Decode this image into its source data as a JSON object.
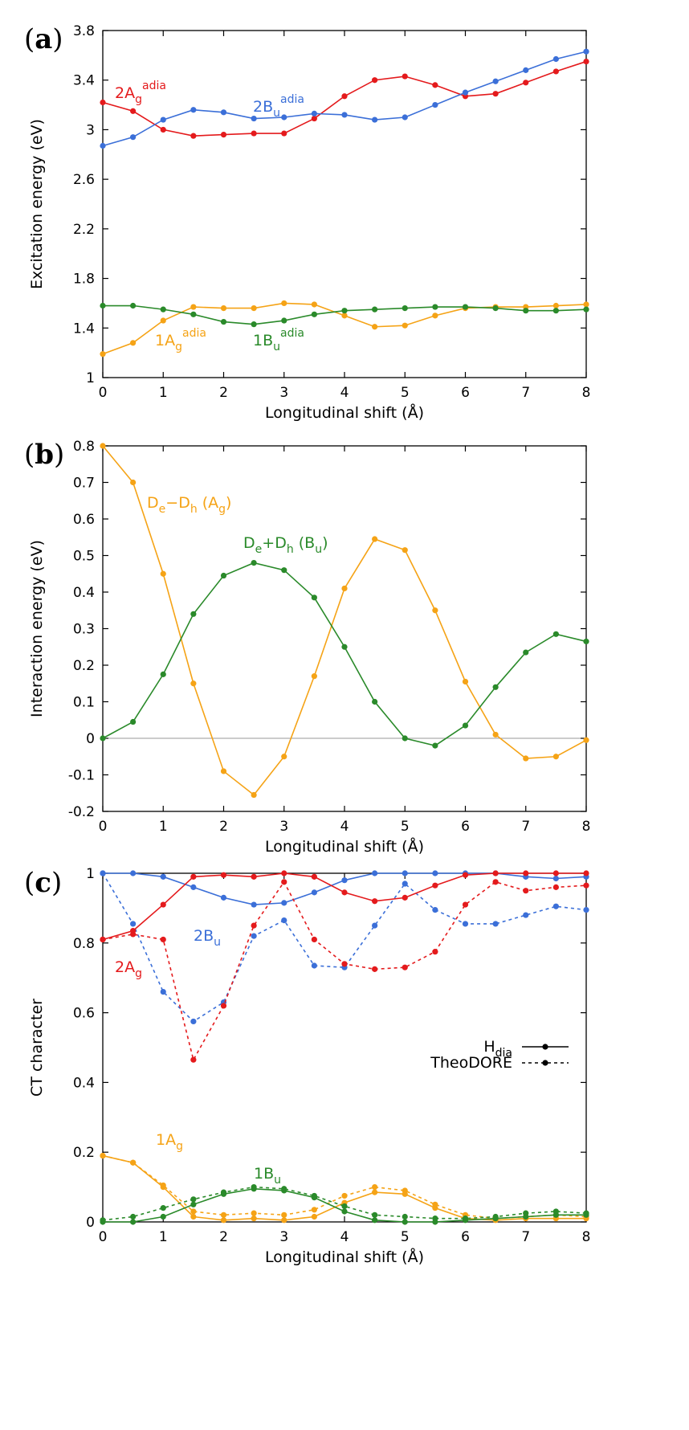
{
  "colors": {
    "red": "#e41a1c",
    "blue": "#3b6fd8",
    "green": "#2a8a2a",
    "orange": "#f5a316",
    "axis": "#000000",
    "zero_line": "#999999"
  },
  "chart_data": [
    {
      "panel": "(a)",
      "type": "line",
      "xlabel": "Longitudinal shift (Å)",
      "ylabel": "Excitation energy (eV)",
      "xlim": [
        0,
        8
      ],
      "ylim": [
        1,
        3.8
      ],
      "xticks": [
        "0",
        "1",
        "2",
        "3",
        "4",
        "5",
        "6",
        "7",
        "8"
      ],
      "yticks": [
        "1",
        "1.4",
        "1.8",
        "2.2",
        "2.6",
        "3",
        "3.4",
        "3.8"
      ],
      "x": [
        0,
        0.5,
        1,
        1.5,
        2,
        2.5,
        3,
        3.5,
        4,
        4.5,
        5,
        5.5,
        6,
        6.5,
        7,
        7.5,
        8
      ],
      "series": [
        {
          "name": "2Ag",
          "sup": "adia",
          "color": "red",
          "values": [
            3.22,
            3.15,
            3.0,
            2.95,
            2.96,
            2.97,
            2.97,
            3.09,
            3.27,
            3.4,
            3.43,
            3.36,
            3.27,
            3.29,
            3.38,
            3.47,
            3.55
          ]
        },
        {
          "name": "2Bu",
          "sup": "adia",
          "color": "blue",
          "values": [
            2.87,
            2.94,
            3.08,
            3.16,
            3.14,
            3.09,
            3.1,
            3.13,
            3.12,
            3.08,
            3.1,
            3.2,
            3.3,
            3.39,
            3.48,
            3.57,
            3.63
          ]
        },
        {
          "name": "1Ag",
          "sup": "adia",
          "color": "orange",
          "values": [
            1.19,
            1.28,
            1.46,
            1.57,
            1.56,
            1.56,
            1.6,
            1.59,
            1.5,
            1.41,
            1.42,
            1.5,
            1.56,
            1.57,
            1.57,
            1.58,
            1.59
          ]
        },
        {
          "name": "1Bu",
          "sup": "adia",
          "color": "green",
          "values": [
            1.58,
            1.58,
            1.55,
            1.51,
            1.45,
            1.43,
            1.46,
            1.51,
            1.54,
            1.55,
            1.56,
            1.57,
            1.57,
            1.56,
            1.54,
            1.54,
            1.55
          ]
        }
      ]
    },
    {
      "panel": "(b)",
      "type": "line",
      "xlabel": "Longitudinal shift (Å)",
      "ylabel": "Interaction energy (eV)",
      "xlim": [
        0,
        8
      ],
      "ylim": [
        -0.2,
        0.8
      ],
      "xticks": [
        "0",
        "1",
        "2",
        "3",
        "4",
        "5",
        "6",
        "7",
        "8"
      ],
      "yticks": [
        "-0.2",
        "-0.1",
        "0",
        "0.1",
        "0.2",
        "0.3",
        "0.4",
        "0.5",
        "0.6",
        "0.7",
        "0.8"
      ],
      "x": [
        0,
        0.5,
        1,
        1.5,
        2,
        2.5,
        3,
        3.5,
        4,
        4.5,
        5,
        5.5,
        6,
        6.5,
        7,
        7.5,
        8
      ],
      "series": [
        {
          "name": "De−Dh (Ag)",
          "color": "orange",
          "values": [
            0.8,
            0.7,
            0.45,
            0.15,
            -0.09,
            -0.155,
            -0.05,
            0.17,
            0.41,
            0.545,
            0.515,
            0.35,
            0.155,
            0.01,
            -0.055,
            -0.05,
            -0.005
          ]
        },
        {
          "name": "De+Dh (Bu)",
          "color": "green",
          "values": [
            0.0,
            0.045,
            0.175,
            0.34,
            0.445,
            0.48,
            0.46,
            0.385,
            0.25,
            0.1,
            0.0,
            -0.02,
            0.035,
            0.14,
            0.235,
            0.285,
            0.265
          ]
        }
      ]
    },
    {
      "panel": "(c)",
      "type": "line",
      "xlabel": "Longitudinal shift (Å)",
      "ylabel": "CT character",
      "xlim": [
        0,
        8
      ],
      "ylim": [
        0,
        1
      ],
      "xticks": [
        "0",
        "1",
        "2",
        "3",
        "4",
        "5",
        "6",
        "7",
        "8"
      ],
      "yticks": [
        "0",
        "0.2",
        "0.4",
        "0.6",
        "0.8",
        "1"
      ],
      "x": [
        0,
        0.5,
        1,
        1.5,
        2,
        2.5,
        3,
        3.5,
        4,
        4.5,
        5,
        5.5,
        6,
        6.5,
        7,
        7.5,
        8
      ],
      "legend": {
        "placement": "right",
        "entries": [
          {
            "label": "H",
            "sub": "dia",
            "style": "solid"
          },
          {
            "label": "TheoDORE",
            "style": "dashed"
          }
        ]
      },
      "series": [
        {
          "name": "2Bu",
          "method": "Hdia",
          "color": "blue",
          "values": [
            1.0,
            1.0,
            0.99,
            0.96,
            0.93,
            0.91,
            0.915,
            0.945,
            0.98,
            1.0,
            1.0,
            1.0,
            1.0,
            1.0,
            0.99,
            0.985,
            0.99
          ]
        },
        {
          "name": "2Bu",
          "method": "TheoDORE",
          "color": "blue",
          "values": [
            1.0,
            0.855,
            0.66,
            0.575,
            0.63,
            0.82,
            0.865,
            0.735,
            0.73,
            0.85,
            0.97,
            0.895,
            0.855,
            0.855,
            0.88,
            0.905,
            0.895
          ]
        },
        {
          "name": "2Ag",
          "method": "Hdia",
          "color": "red",
          "values": [
            0.81,
            0.835,
            0.91,
            0.99,
            0.995,
            0.99,
            1.0,
            0.99,
            0.945,
            0.92,
            0.93,
            0.965,
            0.995,
            1.0,
            1.0,
            1.0,
            1.0
          ]
        },
        {
          "name": "2Ag",
          "method": "TheoDORE",
          "color": "red",
          "values": [
            0.81,
            0.825,
            0.81,
            0.465,
            0.62,
            0.85,
            0.975,
            0.81,
            0.74,
            0.725,
            0.73,
            0.775,
            0.91,
            0.975,
            0.95,
            0.96,
            0.965
          ]
        },
        {
          "name": "1Ag",
          "method": "Hdia",
          "color": "orange",
          "values": [
            0.19,
            0.17,
            0.1,
            0.015,
            0.005,
            0.01,
            0.005,
            0.015,
            0.055,
            0.085,
            0.08,
            0.04,
            0.01,
            0.005,
            0.01,
            0.01,
            0.01
          ]
        },
        {
          "name": "1Ag",
          "method": "TheoDORE",
          "color": "orange",
          "values": [
            0.19,
            0.17,
            0.105,
            0.03,
            0.02,
            0.025,
            0.02,
            0.035,
            0.075,
            0.1,
            0.09,
            0.05,
            0.02,
            0.01,
            0.015,
            0.02,
            0.015
          ]
        },
        {
          "name": "1Bu",
          "method": "Hdia",
          "color": "green",
          "values": [
            0.0,
            0.0,
            0.015,
            0.05,
            0.08,
            0.095,
            0.09,
            0.07,
            0.03,
            0.005,
            0.0,
            0.0,
            0.005,
            0.01,
            0.015,
            0.02,
            0.02
          ]
        },
        {
          "name": "1Bu",
          "method": "TheoDORE",
          "color": "green",
          "values": [
            0.005,
            0.015,
            0.04,
            0.065,
            0.085,
            0.1,
            0.095,
            0.075,
            0.045,
            0.02,
            0.015,
            0.01,
            0.01,
            0.015,
            0.025,
            0.03,
            0.025
          ]
        }
      ]
    }
  ]
}
